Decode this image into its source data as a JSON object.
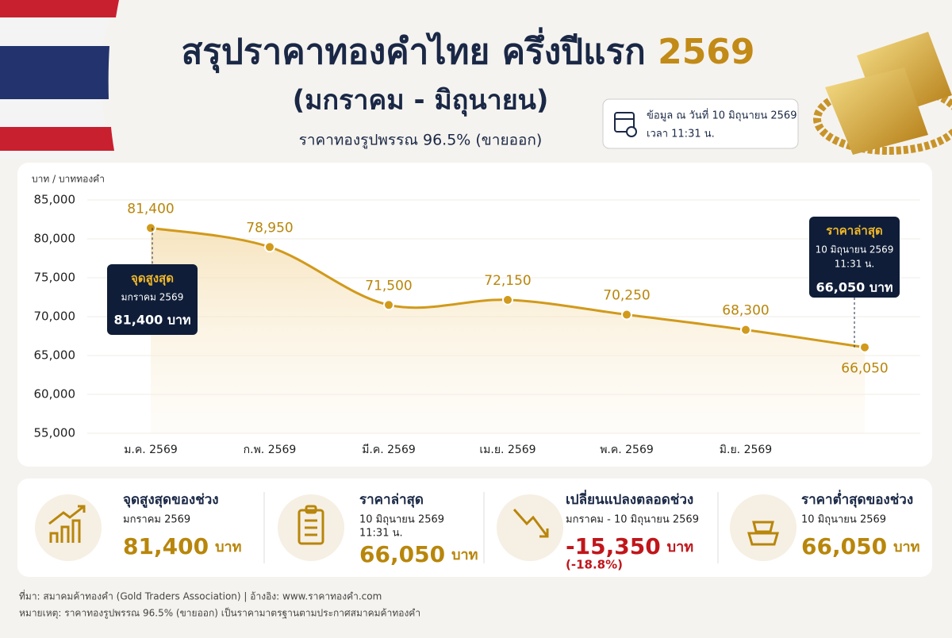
{
  "header": {
    "title": "สรุปราคาทองคำไทย ครึ่งปีแรก",
    "title_year": "2569",
    "period": "(มกราคม - มิถุนายน)",
    "subtitle": "ราคาทองรูปพรรณ 96.5% (ขายออก)",
    "as_of": "ข้อมูล ณ วันที่ 10 มิถุนายน 2569",
    "time": "เวลา 11:31 น."
  },
  "chart_data": {
    "type": "line",
    "y_label": "บาท / บาททองคำ",
    "categories": [
      "ม.ค. 2569",
      "ก.พ. 2569",
      "มี.ค. 2569",
      "เม.ย. 2569",
      "พ.ค. 2569",
      "มิ.ย. 2569",
      null
    ],
    "values": [
      81400,
      78950,
      71500,
      72150,
      70250,
      68300,
      66050
    ],
    "value_labels": [
      "81,400",
      "78,950",
      "71,500",
      "72,150",
      "70,250",
      "68,300",
      "66,050"
    ],
    "color": "#d19a1c",
    "ylim": [
      55000,
      85000
    ],
    "yticks": [
      {
        "value": 55000,
        "label": "55,000"
      },
      {
        "value": 60000,
        "label": "60,000"
      },
      {
        "value": 65000,
        "label": "65,000"
      },
      {
        "value": 70000,
        "label": "70,000"
      },
      {
        "value": 75000,
        "label": "75,000"
      },
      {
        "value": 80000,
        "label": "80,000"
      },
      {
        "value": 85000,
        "label": "85,000"
      }
    ],
    "grid": true,
    "annotations": [
      {
        "title": "จุดสูงสุด",
        "lines": [
          "มกราคม 2569"
        ],
        "value": "81,400 บาท"
      },
      {
        "title": "ราคาล่าสุด",
        "lines": [
          "10 มิถุนายน 2569",
          "11:31 น."
        ],
        "value": "66,050 บาท"
      }
    ]
  },
  "cards": [
    {
      "title": "จุดสูงสุดของช่วง",
      "lines": [
        "มกราคม 2569"
      ],
      "value": "81,400",
      "unit": "บาท"
    },
    {
      "title": "ราคาล่าสุด",
      "lines": [
        "10 มิถุนายน 2569",
        "11:31 น."
      ],
      "value": "66,050",
      "unit": "บาท"
    },
    {
      "title": "เปลี่ยนแปลงตลอดช่วง",
      "lines": [
        "มกราคม - 10 มิถุนายน 2569"
      ],
      "value": "-15,350",
      "unit": "บาท",
      "change": "(-18.8%)"
    },
    {
      "title": "ราคาต่ำสุดของช่วง",
      "lines": [
        "10 มิถุนายน 2569"
      ],
      "value": "66,050",
      "unit": "บาท"
    }
  ],
  "footer": [
    "ที่มา: สมาคมค้าทองคำ (Gold Traders Association)  |  อ้างอิง: www.ราคาทองคำ.com",
    "หมายเหตุ: ราคาทองรูปพรรณ 96.5% (ขายออก) เป็นราคามาตรฐานตามประกาศสมาคมค้าทองคำ"
  ]
}
